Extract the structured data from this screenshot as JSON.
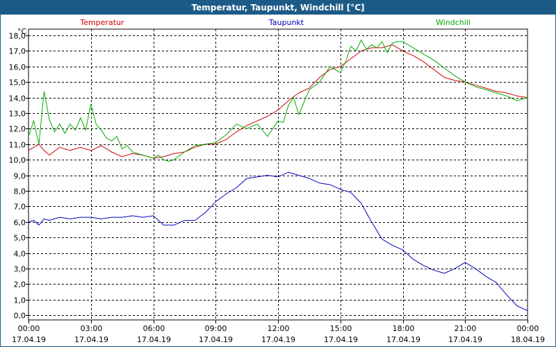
{
  "window": {
    "title": "Temperatur, Taupunkt, Windchill [°C]"
  },
  "colors": {
    "title_bar": "#1d5b87",
    "temperatur": "#cc0000",
    "taupunkt": "#0000bb",
    "windchill": "#00aa00",
    "grid": "#000000"
  },
  "chart_data": {
    "type": "line",
    "title": "Temperatur, Taupunkt, Windchill [°C]",
    "ylabel": "°C",
    "xlabel": "",
    "ylim": [
      -0.3,
      18.4
    ],
    "xlim": [
      0,
      24
    ],
    "grid": true,
    "y_ticks": [
      0,
      1,
      2,
      3,
      4,
      5,
      6,
      7,
      8,
      9,
      10,
      11,
      12,
      13,
      14,
      15,
      16,
      17,
      18
    ],
    "y_tick_labels": [
      "0,0",
      "1,0",
      "2,0",
      "3,0",
      "4,0",
      "5,0",
      "6,0",
      "7,0",
      "8,0",
      "9,0",
      "10,0",
      "11,0",
      "12,0",
      "13,0",
      "14,0",
      "15,0",
      "16,0",
      "17,0",
      "18,0"
    ],
    "x_ticks": [
      0,
      3,
      6,
      9,
      12,
      15,
      18,
      21,
      24
    ],
    "x_tick_times": [
      "00:00",
      "03:00",
      "06:00",
      "09:00",
      "12:00",
      "15:00",
      "18:00",
      "21:00",
      "00:00"
    ],
    "x_tick_dates": [
      "17.04.19",
      "17.04.19",
      "17.04.19",
      "17.04.19",
      "17.04.19",
      "17.04.19",
      "17.04.19",
      "17.04.19",
      "18.04.19"
    ],
    "legend": [
      "Temperatur",
      "Taupunkt",
      "Windchill"
    ],
    "series": [
      {
        "name": "Temperatur",
        "color": "#cc0000",
        "x": [
          0,
          0.25,
          0.5,
          0.75,
          1,
          1.5,
          2,
          2.5,
          3,
          3.5,
          4,
          4.5,
          5,
          5.5,
          6,
          6.5,
          7,
          7.5,
          8,
          8.5,
          9,
          9.5,
          10,
          10.5,
          11,
          11.5,
          12,
          12.5,
          13,
          13.5,
          14,
          14.5,
          15,
          15.5,
          16,
          16.5,
          17,
          17.5,
          18,
          18.5,
          19,
          19.5,
          20,
          20.5,
          21,
          21.5,
          22,
          22.5,
          23,
          23.5,
          24
        ],
        "values": [
          10.6,
          10.8,
          11.0,
          10.6,
          10.3,
          10.8,
          10.6,
          10.8,
          10.6,
          10.9,
          10.5,
          10.2,
          10.4,
          10.3,
          10.1,
          10.2,
          10.4,
          10.5,
          10.8,
          11.0,
          11.0,
          11.3,
          11.8,
          12.2,
          12.5,
          12.8,
          13.2,
          13.8,
          14.3,
          14.6,
          15.3,
          15.8,
          16.0,
          16.5,
          17.0,
          17.2,
          17.2,
          17.4,
          17.0,
          16.7,
          16.3,
          15.8,
          15.3,
          15.1,
          15.0,
          14.8,
          14.6,
          14.4,
          14.3,
          14.1,
          14.0
        ]
      },
      {
        "name": "Taupunkt",
        "color": "#0000bb",
        "x": [
          0,
          0.25,
          0.5,
          0.75,
          1,
          1.5,
          2,
          2.5,
          3,
          3.5,
          4,
          4.5,
          5,
          5.5,
          6,
          6.5,
          7,
          7.5,
          8,
          8.5,
          9,
          9.5,
          10,
          10.5,
          11,
          11.5,
          12,
          12.5,
          13,
          13.5,
          14,
          14.5,
          15,
          15.5,
          16,
          16.5,
          17,
          17.5,
          18,
          18.5,
          19,
          19.5,
          20,
          20.5,
          21,
          21.5,
          22,
          22.5,
          23,
          23.5,
          24
        ],
        "values": [
          6.0,
          6.1,
          5.8,
          6.2,
          6.1,
          6.3,
          6.2,
          6.3,
          6.3,
          6.2,
          6.3,
          6.3,
          6.4,
          6.3,
          6.4,
          5.8,
          5.8,
          6.1,
          6.1,
          6.6,
          7.3,
          7.8,
          8.2,
          8.8,
          8.9,
          9.0,
          8.9,
          9.2,
          9.0,
          8.8,
          8.5,
          8.4,
          8.1,
          7.9,
          7.2,
          6.0,
          4.9,
          4.5,
          4.2,
          3.6,
          3.2,
          2.9,
          2.7,
          3.0,
          3.4,
          3.0,
          2.5,
          2.1,
          1.3,
          0.6,
          0.3
        ]
      },
      {
        "name": "Windchill",
        "color": "#00aa00",
        "x": [
          0,
          0.25,
          0.5,
          0.75,
          1,
          1.25,
          1.5,
          1.75,
          2,
          2.25,
          2.5,
          2.75,
          3,
          3.25,
          3.5,
          3.75,
          4,
          4.25,
          4.5,
          4.75,
          5,
          5.5,
          6,
          6.25,
          6.5,
          6.75,
          7,
          7.5,
          8,
          8.5,
          9,
          9.5,
          10,
          10.5,
          11,
          11.5,
          12,
          12.25,
          12.5,
          12.75,
          13,
          13.5,
          14,
          14.5,
          15,
          15.25,
          15.5,
          15.75,
          16,
          16.25,
          16.5,
          16.75,
          17,
          17.25,
          17.5,
          17.75,
          18,
          18.5,
          19,
          19.5,
          20,
          20.5,
          21,
          21.5,
          22,
          22.5,
          23,
          23.5,
          24
        ],
        "values": [
          11.5,
          12.5,
          11.0,
          14.4,
          12.6,
          11.8,
          12.3,
          11.7,
          12.3,
          11.9,
          12.7,
          11.9,
          13.6,
          12.3,
          11.9,
          11.4,
          11.2,
          11.5,
          10.7,
          10.9,
          10.5,
          10.3,
          10.1,
          10.3,
          10.0,
          9.9,
          10.0,
          10.5,
          10.9,
          11.0,
          11.1,
          11.6,
          12.3,
          12.0,
          12.3,
          11.5,
          12.5,
          12.4,
          13.5,
          14.0,
          12.9,
          14.5,
          15.0,
          16.0,
          15.6,
          16.3,
          17.3,
          17.0,
          17.7,
          17.1,
          17.4,
          17.2,
          17.6,
          16.9,
          17.5,
          17.6,
          17.6,
          17.2,
          16.8,
          16.4,
          15.9,
          15.4,
          15.0,
          14.7,
          14.5,
          14.3,
          14.1,
          13.8,
          14.0
        ]
      }
    ]
  }
}
